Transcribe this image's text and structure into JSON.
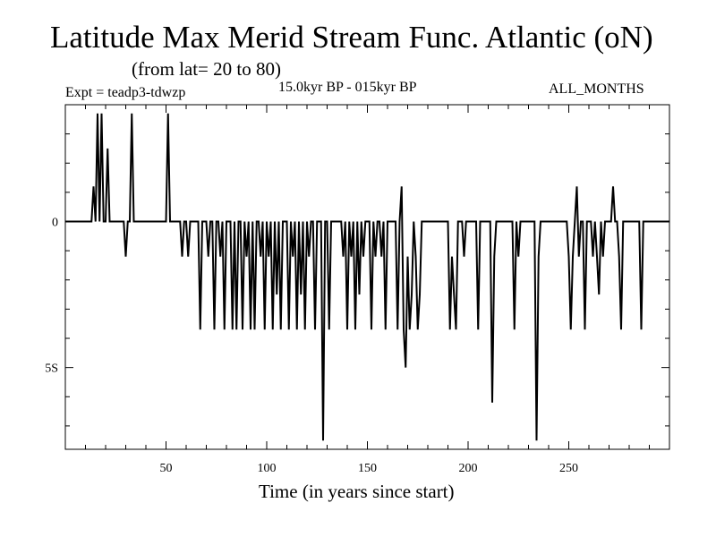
{
  "chart_data": {
    "type": "line",
    "title": "Latitude Max Merid Stream Func. Atlantic (oN)",
    "subtitle": "(from lat= 20 to 80)",
    "annotations": {
      "experiment": "Expt = teadp3-tdwzp",
      "period": "15.0kyr BP - 015kyr BP",
      "months": "ALL_MONTHS"
    },
    "xlabel": "Time (in years since start)",
    "ylabel": "",
    "xlim": [
      0,
      300
    ],
    "ylim": [
      -7.8,
      4
    ],
    "x_ticks": [
      50,
      100,
      150,
      200,
      250
    ],
    "x_tick_labels": [
      "50",
      "100",
      "150",
      "200",
      "250"
    ],
    "y_ticks": [
      0,
      -5
    ],
    "y_tick_labels": [
      "0",
      "5S"
    ],
    "grid": false,
    "series": [
      {
        "name": "Latitude of max meridional stream function",
        "points": [
          [
            0,
            0
          ],
          [
            13,
            0
          ],
          [
            14,
            1.2
          ],
          [
            15,
            0
          ],
          [
            16,
            3.7
          ],
          [
            17,
            0
          ],
          [
            18,
            3.7
          ],
          [
            19,
            0
          ],
          [
            20,
            0
          ],
          [
            21,
            2.5
          ],
          [
            22,
            0
          ],
          [
            29,
            0
          ],
          [
            30,
            -1.2
          ],
          [
            31,
            0
          ],
          [
            32,
            0
          ],
          [
            33,
            3.7
          ],
          [
            34,
            0
          ],
          [
            50,
            0
          ],
          [
            51,
            3.7
          ],
          [
            52,
            0
          ],
          [
            57,
            0
          ],
          [
            58,
            -1.2
          ],
          [
            59,
            0
          ],
          [
            60,
            0
          ],
          [
            61,
            -1.2
          ],
          [
            62,
            0
          ],
          [
            66,
            0
          ],
          [
            67,
            -3.7
          ],
          [
            68,
            0
          ],
          [
            70,
            0
          ],
          [
            71,
            -1.2
          ],
          [
            72,
            0
          ],
          [
            73,
            0
          ],
          [
            74,
            -3.7
          ],
          [
            75,
            0
          ],
          [
            76,
            0
          ],
          [
            77,
            -1.2
          ],
          [
            78,
            0
          ],
          [
            79,
            -3.7
          ],
          [
            80,
            0
          ],
          [
            82,
            0
          ],
          [
            83,
            -3.7
          ],
          [
            84,
            0
          ],
          [
            85,
            -3.7
          ],
          [
            86,
            0
          ],
          [
            87,
            0
          ],
          [
            88,
            -3.7
          ],
          [
            89,
            0
          ],
          [
            90,
            -1.2
          ],
          [
            91,
            0
          ],
          [
            92,
            -3.7
          ],
          [
            93,
            0
          ],
          [
            94,
            -3.7
          ],
          [
            95,
            0
          ],
          [
            96,
            0
          ],
          [
            97,
            -1.2
          ],
          [
            98,
            0
          ],
          [
            99,
            -3.7
          ],
          [
            100,
            0
          ],
          [
            101,
            -1.2
          ],
          [
            102,
            0
          ],
          [
            103,
            -3.7
          ],
          [
            104,
            0
          ],
          [
            105,
            -2.5
          ],
          [
            106,
            0
          ],
          [
            107,
            -3.7
          ],
          [
            108,
            0
          ],
          [
            110,
            0
          ],
          [
            111,
            -3.7
          ],
          [
            112,
            0
          ],
          [
            113,
            -1.2
          ],
          [
            114,
            0
          ],
          [
            115,
            -3.7
          ],
          [
            116,
            0
          ],
          [
            117,
            -2.5
          ],
          [
            118,
            0
          ],
          [
            119,
            -3.7
          ],
          [
            120,
            0
          ],
          [
            121,
            -1.2
          ],
          [
            122,
            0
          ],
          [
            123,
            0
          ],
          [
            124,
            -3.7
          ],
          [
            125,
            0
          ],
          [
            127,
            0
          ],
          [
            128,
            -7.5
          ],
          [
            129,
            0
          ],
          [
            130,
            0
          ],
          [
            131,
            -3.7
          ],
          [
            132,
            0
          ],
          [
            137,
            0
          ],
          [
            138,
            -1.2
          ],
          [
            139,
            0
          ],
          [
            140,
            -3.7
          ],
          [
            141,
            0
          ],
          [
            142,
            -1.2
          ],
          [
            143,
            0
          ],
          [
            144,
            -3.7
          ],
          [
            145,
            0
          ],
          [
            146,
            -2.5
          ],
          [
            147,
            0
          ],
          [
            148,
            -1.2
          ],
          [
            149,
            0
          ],
          [
            151,
            0
          ],
          [
            152,
            -3.7
          ],
          [
            153,
            0
          ],
          [
            154,
            -1.2
          ],
          [
            155,
            0
          ],
          [
            156,
            0
          ],
          [
            157,
            -1.2
          ],
          [
            158,
            0
          ],
          [
            159,
            -3.7
          ],
          [
            160,
            0
          ],
          [
            164,
            0
          ],
          [
            165,
            -3.7
          ],
          [
            166,
            0
          ],
          [
            167,
            1.2
          ],
          [
            168,
            -3.7
          ],
          [
            169,
            -5.0
          ],
          [
            170,
            -1.2
          ],
          [
            171,
            -3.7
          ],
          [
            172,
            -2.5
          ],
          [
            173,
            0
          ],
          [
            174,
            -1.2
          ],
          [
            175,
            -3.7
          ],
          [
            176,
            -2.5
          ],
          [
            177,
            0
          ],
          [
            190,
            0
          ],
          [
            191,
            -3.7
          ],
          [
            192,
            -1.2
          ],
          [
            193,
            -2.5
          ],
          [
            194,
            -3.7
          ],
          [
            195,
            0
          ],
          [
            197,
            0
          ],
          [
            198,
            -1.2
          ],
          [
            199,
            0
          ],
          [
            204,
            0
          ],
          [
            205,
            -3.7
          ],
          [
            206,
            0
          ],
          [
            211,
            0
          ],
          [
            212,
            -6.2
          ],
          [
            213,
            -1.2
          ],
          [
            214,
            0
          ],
          [
            222,
            0
          ],
          [
            223,
            -3.7
          ],
          [
            224,
            0
          ],
          [
            225,
            -1.2
          ],
          [
            226,
            0
          ],
          [
            233,
            0
          ],
          [
            234,
            -7.5
          ],
          [
            235,
            -1.2
          ],
          [
            236,
            0
          ],
          [
            249,
            0
          ],
          [
            250,
            -1.2
          ],
          [
            251,
            -3.7
          ],
          [
            252,
            -1.2
          ],
          [
            253,
            0
          ],
          [
            254,
            1.2
          ],
          [
            255,
            -1.2
          ],
          [
            256,
            0
          ],
          [
            257,
            0
          ],
          [
            258,
            -3.7
          ],
          [
            259,
            0
          ],
          [
            261,
            0
          ],
          [
            262,
            -1.2
          ],
          [
            263,
            0
          ],
          [
            264,
            -1.2
          ],
          [
            265,
            -2.5
          ],
          [
            266,
            0
          ],
          [
            267,
            -1.2
          ],
          [
            268,
            0
          ],
          [
            271,
            0
          ],
          [
            272,
            1.2
          ],
          [
            273,
            0
          ],
          [
            274,
            0
          ],
          [
            275,
            -1.2
          ],
          [
            276,
            -3.7
          ],
          [
            277,
            0
          ],
          [
            285,
            0
          ],
          [
            286,
            -3.7
          ],
          [
            287,
            0
          ],
          [
            300,
            0
          ]
        ]
      }
    ]
  }
}
